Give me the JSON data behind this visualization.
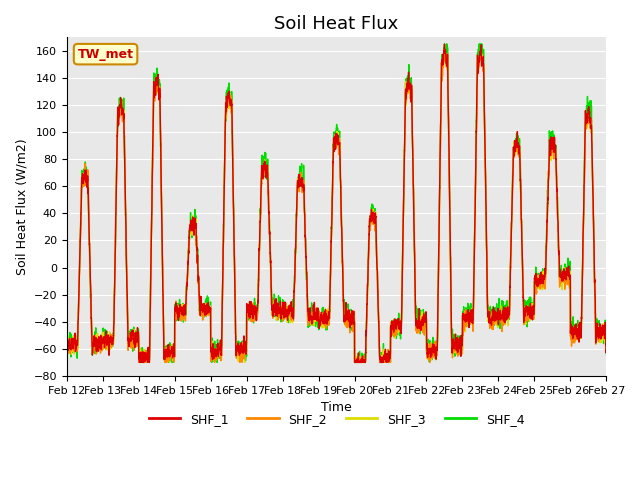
{
  "title": "Soil Heat Flux",
  "xlabel": "Time",
  "ylabel": "Soil Heat Flux (W/m2)",
  "ylim": [
    -80,
    170
  ],
  "yticks": [
    -80,
    -60,
    -40,
    -20,
    0,
    20,
    40,
    60,
    80,
    100,
    120,
    140,
    160
  ],
  "series_names": [
    "SHF_1",
    "SHF_2",
    "SHF_3",
    "SHF_4"
  ],
  "colors": [
    "#dd0000",
    "#ff8800",
    "#dddd00",
    "#00dd00"
  ],
  "linewidths": [
    1.0,
    1.0,
    1.0,
    1.0
  ],
  "annotation_text": "TW_met",
  "annotation_bg": "#ffffcc",
  "annotation_border": "#cc8800",
  "annotation_text_color": "#cc0000",
  "bg_color": "#e8e8e8",
  "xtick_labels": [
    "Feb 12",
    "Feb 13",
    "Feb 14",
    "Feb 15",
    "Feb 16",
    "Feb 17",
    "Feb 18",
    "Feb 19",
    "Feb 20",
    "Feb 21",
    "Feb 22",
    "Feb 23",
    "Feb 24",
    "Feb 25",
    "Feb 26",
    "Feb 27"
  ],
  "title_fontsize": 13,
  "label_fontsize": 9,
  "tick_fontsize": 8,
  "legend_fontsize": 9
}
